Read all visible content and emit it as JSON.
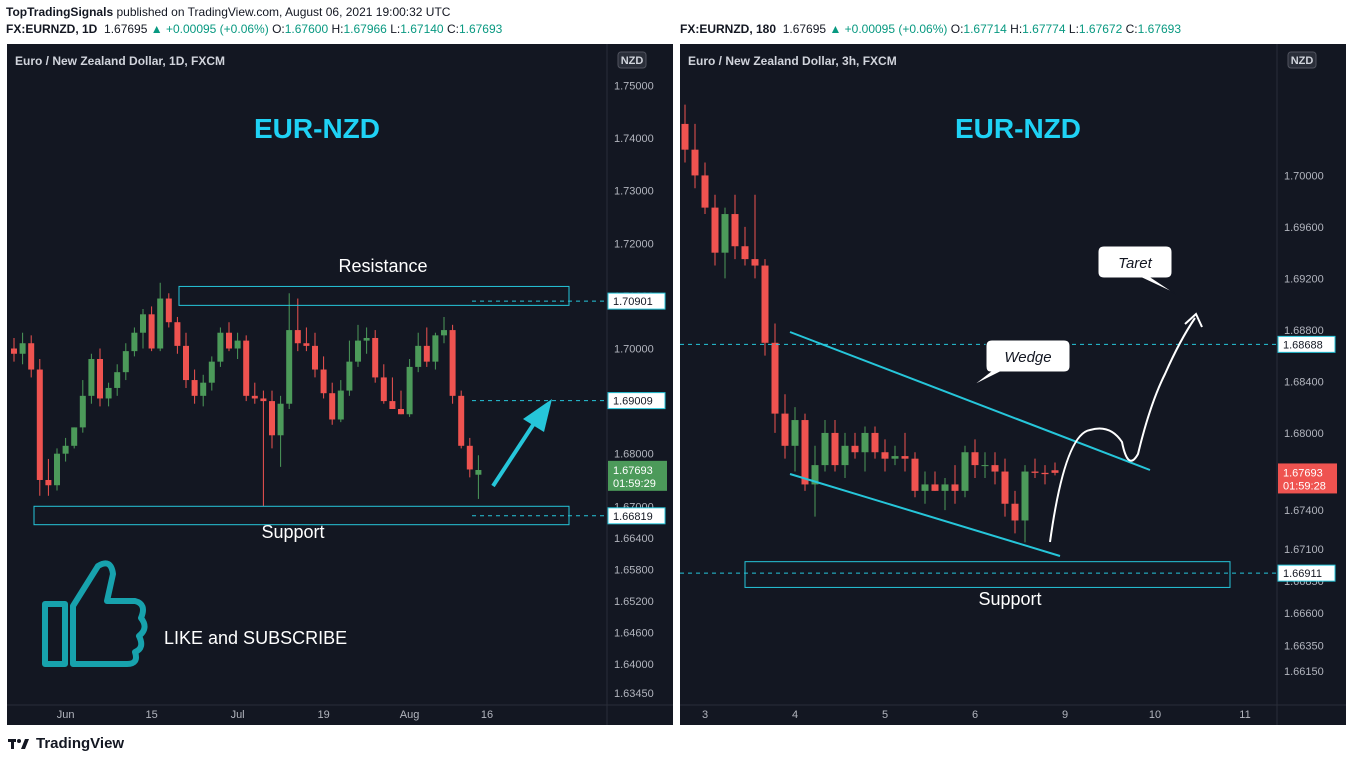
{
  "header": {
    "publisher": "TopTradingSignals",
    "published_text": "published on TradingView.com, August 06, 2021 19:00:32 UTC",
    "left": {
      "symbol": "FX:EURNZD, 1D",
      "price": "1.67695",
      "change": "▲ +0.00095 (+0.06%)",
      "o_label": "O:",
      "o": "1.67600",
      "h_label": "H:",
      "h": "1.67966",
      "l_label": "L:",
      "l": "1.67140",
      "c_label": "C:",
      "c": "1.67693"
    },
    "right": {
      "symbol": "FX:EURNZD, 180",
      "price": "1.67695",
      "change": "▲ +0.00095 (+0.06%)",
      "o_label": "O:",
      "o": "1.67714",
      "h_label": "H:",
      "h": "1.67774",
      "l_label": "L:",
      "l": "1.67672",
      "c_label": "C:",
      "c": "1.67693"
    }
  },
  "footer": {
    "brand": "TradingView"
  },
  "colors": {
    "background": "#131722",
    "bull": "#4c9a5a",
    "bear": "#ef5350",
    "accent": "#26c6da",
    "title": "#1fd2f5",
    "text": "#d1d4dc",
    "axis": "#b2b5be"
  },
  "chart_data": [
    {
      "type": "candlestick",
      "pane_title": "Euro / New Zealand Dollar, 1D, FXCM",
      "title": "EUR-NZD",
      "currency_badge": "NZD",
      "ylim": [
        1.6345,
        1.752
      ],
      "yticks": [
        "1.75000",
        "1.74000",
        "1.73000",
        "1.72000",
        "1.71000",
        "1.70000",
        "1.69000",
        "1.68000",
        "1.67000",
        "1.66400",
        "1.65800",
        "1.65200",
        "1.64600",
        "1.64000",
        "1.63450"
      ],
      "y_scale": [
        {
          "value": 1.75,
          "label": "1.75000"
        },
        {
          "value": 1.74,
          "label": "1.74000"
        },
        {
          "value": 1.73,
          "label": "1.73000"
        },
        {
          "value": 1.72,
          "label": "1.72000"
        },
        {
          "value": 1.71,
          "label": "1.71000"
        },
        {
          "value": 1.7,
          "label": "1.70000"
        },
        {
          "value": 1.69,
          "label": "1.69000"
        },
        {
          "value": 1.68,
          "label": "1.68000"
        },
        {
          "value": 1.67,
          "label": "1.67000"
        },
        {
          "value": 1.664,
          "label": "1.66400"
        },
        {
          "value": 1.658,
          "label": "1.65800"
        },
        {
          "value": 1.652,
          "label": "1.65200"
        },
        {
          "value": 1.646,
          "label": "1.64600"
        },
        {
          "value": 1.64,
          "label": "1.64000"
        },
        {
          "value": 1.6345,
          "label": "1.63450"
        }
      ],
      "x_ticks": [
        "Jun",
        "15",
        "Jul",
        "19",
        "Aug",
        "16"
      ],
      "x_tick_index": [
        6,
        16,
        26,
        36,
        46,
        55
      ],
      "levels": [
        {
          "label": "1.70901",
          "value": 1.70901,
          "style": "box"
        },
        {
          "label": "1.69009",
          "value": 1.69009,
          "style": "box"
        },
        {
          "label": "1.66819",
          "value": 1.66819,
          "style": "box"
        }
      ],
      "last_price": {
        "label": "1.67693",
        "countdown": "01:59:29",
        "value": 1.67693
      },
      "annotations": [
        "Resistance",
        "Support",
        "LIKE and SUBSCRIBE"
      ],
      "resistance_zone": [
        1.7082,
        1.7118
      ],
      "support_zone": [
        1.6665,
        1.67
      ],
      "ohlc": [
        [
          1.7,
          1.702,
          1.6975,
          1.699
        ],
        [
          1.699,
          1.703,
          1.697,
          1.701
        ],
        [
          1.701,
          1.7025,
          1.6945,
          1.696
        ],
        [
          1.696,
          1.698,
          1.672,
          1.675
        ],
        [
          1.675,
          1.679,
          1.672,
          1.674
        ],
        [
          1.674,
          1.681,
          1.673,
          1.68
        ],
        [
          1.68,
          1.683,
          1.6785,
          1.6815
        ],
        [
          1.6815,
          1.685,
          1.681,
          1.685
        ],
        [
          1.685,
          1.694,
          1.684,
          1.691
        ],
        [
          1.691,
          1.699,
          1.6895,
          1.698
        ],
        [
          1.698,
          1.7,
          1.689,
          1.6905
        ],
        [
          1.6905,
          1.6935,
          1.689,
          1.6925
        ],
        [
          1.6925,
          1.697,
          1.691,
          1.6955
        ],
        [
          1.6955,
          1.701,
          1.694,
          1.6995
        ],
        [
          1.6995,
          1.704,
          1.6985,
          1.703
        ],
        [
          1.703,
          1.7075,
          1.7,
          1.7065
        ],
        [
          1.7065,
          1.708,
          1.6995,
          1.7
        ],
        [
          1.7,
          1.7125,
          1.6995,
          1.7095
        ],
        [
          1.7095,
          1.7105,
          1.704,
          1.705
        ],
        [
          1.705,
          1.706,
          1.699,
          1.7005
        ],
        [
          1.7005,
          1.703,
          1.6925,
          1.694
        ],
        [
          1.694,
          1.696,
          1.6895,
          1.691
        ],
        [
          1.691,
          1.695,
          1.689,
          1.6935
        ],
        [
          1.6935,
          1.6985,
          1.692,
          1.6975
        ],
        [
          1.6975,
          1.704,
          1.6965,
          1.703
        ],
        [
          1.703,
          1.705,
          1.6995,
          1.7
        ],
        [
          1.7,
          1.703,
          1.698,
          1.7015
        ],
        [
          1.7015,
          1.7025,
          1.69,
          1.691
        ],
        [
          1.691,
          1.6935,
          1.6895,
          1.6905
        ],
        [
          1.6905,
          1.692,
          1.67,
          1.69
        ],
        [
          1.69,
          1.692,
          1.681,
          1.6835
        ],
        [
          1.6835,
          1.691,
          1.6775,
          1.6895
        ],
        [
          1.6895,
          1.7105,
          1.6885,
          1.7035
        ],
        [
          1.7035,
          1.7095,
          1.6995,
          1.701
        ],
        [
          1.701,
          1.704,
          1.6995,
          1.7005
        ],
        [
          1.7005,
          1.703,
          1.6945,
          1.696
        ],
        [
          1.696,
          1.6985,
          1.6905,
          1.6915
        ],
        [
          1.6915,
          1.6935,
          1.6855,
          1.6865
        ],
        [
          1.6865,
          1.694,
          1.686,
          1.692
        ],
        [
          1.692,
          1.7015,
          1.691,
          1.6975
        ],
        [
          1.6975,
          1.7045,
          1.6965,
          1.7015
        ],
        [
          1.7015,
          1.704,
          1.699,
          1.702
        ],
        [
          1.702,
          1.7035,
          1.6935,
          1.6945
        ],
        [
          1.6945,
          1.697,
          1.6895,
          1.69
        ],
        [
          1.69,
          1.6945,
          1.6885,
          1.6885
        ],
        [
          1.6885,
          1.692,
          1.6875,
          1.6875
        ],
        [
          1.6875,
          1.698,
          1.687,
          1.6965
        ],
        [
          1.6965,
          1.703,
          1.6955,
          1.7005
        ],
        [
          1.7005,
          1.704,
          1.6965,
          1.6975
        ],
        [
          1.6975,
          1.703,
          1.696,
          1.7025
        ],
        [
          1.7025,
          1.706,
          1.701,
          1.7035
        ],
        [
          1.7035,
          1.7045,
          1.6895,
          1.691
        ],
        [
          1.691,
          1.692,
          1.681,
          1.6815
        ],
        [
          1.6815,
          1.683,
          1.6755,
          1.677
        ],
        [
          1.676,
          1.6797,
          1.6714,
          1.6769
        ]
      ]
    },
    {
      "type": "candlestick",
      "pane_title": "Euro / New Zealand Dollar, 3h, FXCM",
      "title": "EUR-NZD",
      "currency_badge": "NZD",
      "ylim": [
        1.6598,
        1.7078
      ],
      "yticks": [
        "1.70000",
        "1.69600",
        "1.69200",
        "1.68800",
        "1.68400",
        "1.68000",
        "1.67400",
        "1.67100",
        "1.66850",
        "1.66600",
        "1.66350",
        "1.66150"
      ],
      "y_scale": [
        {
          "value": 1.7,
          "label": "1.70000"
        },
        {
          "value": 1.696,
          "label": "1.69600"
        },
        {
          "value": 1.692,
          "label": "1.69200"
        },
        {
          "value": 1.688,
          "label": "1.68800"
        },
        {
          "value": 1.684,
          "label": "1.68400"
        },
        {
          "value": 1.68,
          "label": "1.68000"
        },
        {
          "value": 1.674,
          "label": "1.67400"
        },
        {
          "value": 1.671,
          "label": "1.67100"
        },
        {
          "value": 1.6685,
          "label": "1.66850"
        },
        {
          "value": 1.666,
          "label": "1.66600"
        },
        {
          "value": 1.6635,
          "label": "1.66350"
        },
        {
          "value": 1.6615,
          "label": "1.66150"
        }
      ],
      "x_ticks": [
        "3",
        "4",
        "5",
        "6",
        "9",
        "10",
        "11"
      ],
      "x_tick_index": [
        2,
        11,
        20,
        29,
        38,
        47,
        56
      ],
      "levels": [
        {
          "label": "1.68688",
          "value": 1.68688,
          "style": "box"
        },
        {
          "label": "1.66911",
          "value": 1.66911,
          "style": "box"
        }
      ],
      "last_price": {
        "label": "1.67693",
        "countdown": "01:59:28",
        "value": 1.67693
      },
      "annotations": [
        "Taret",
        "Wedge",
        "Support"
      ],
      "support_zone": [
        1.668,
        1.67
      ],
      "ohlc": [
        [
          1.704,
          1.7055,
          1.701,
          1.702
        ],
        [
          1.702,
          1.704,
          1.699,
          1.7
        ],
        [
          1.7,
          1.701,
          1.697,
          1.6975
        ],
        [
          1.6975,
          1.6985,
          1.693,
          1.694
        ],
        [
          1.694,
          1.6975,
          1.692,
          1.697
        ],
        [
          1.697,
          1.6985,
          1.6935,
          1.6945
        ],
        [
          1.6945,
          1.696,
          1.693,
          1.6935
        ],
        [
          1.6935,
          1.6985,
          1.692,
          1.693
        ],
        [
          1.693,
          1.6935,
          1.686,
          1.687
        ],
        [
          1.687,
          1.6885,
          1.68,
          1.6815
        ],
        [
          1.6815,
          1.683,
          1.678,
          1.679
        ],
        [
          1.679,
          1.682,
          1.677,
          1.681
        ],
        [
          1.681,
          1.6815,
          1.6755,
          1.676
        ],
        [
          1.676,
          1.679,
          1.6735,
          1.6775
        ],
        [
          1.6775,
          1.681,
          1.677,
          1.68
        ],
        [
          1.68,
          1.681,
          1.677,
          1.6775
        ],
        [
          1.6775,
          1.68,
          1.6765,
          1.679
        ],
        [
          1.679,
          1.68,
          1.678,
          1.6785
        ],
        [
          1.6785,
          1.6805,
          1.677,
          1.68
        ],
        [
          1.68,
          1.6805,
          1.678,
          1.6785
        ],
        [
          1.6785,
          1.6795,
          1.677,
          1.678
        ],
        [
          1.678,
          1.679,
          1.6775,
          1.6782
        ],
        [
          1.6782,
          1.68,
          1.677,
          1.678
        ],
        [
          1.678,
          1.6785,
          1.675,
          1.6755
        ],
        [
          1.6755,
          1.677,
          1.6745,
          1.676
        ],
        [
          1.676,
          1.677,
          1.6755,
          1.6755
        ],
        [
          1.6755,
          1.6765,
          1.674,
          1.676
        ],
        [
          1.676,
          1.6775,
          1.6745,
          1.6755
        ],
        [
          1.6755,
          1.679,
          1.675,
          1.6785
        ],
        [
          1.6785,
          1.6795,
          1.6765,
          1.6775
        ],
        [
          1.6775,
          1.6785,
          1.6765,
          1.6775
        ],
        [
          1.6775,
          1.6785,
          1.676,
          1.677
        ],
        [
          1.677,
          1.678,
          1.6735,
          1.6745
        ],
        [
          1.6745,
          1.6755,
          1.6722,
          1.6732
        ],
        [
          1.6732,
          1.6775,
          1.6715,
          1.677
        ],
        [
          1.677,
          1.678,
          1.6765,
          1.6769
        ],
        [
          1.6769,
          1.6775,
          1.676,
          1.6768
        ],
        [
          1.6771,
          1.6777,
          1.6767,
          1.6769
        ]
      ]
    }
  ]
}
